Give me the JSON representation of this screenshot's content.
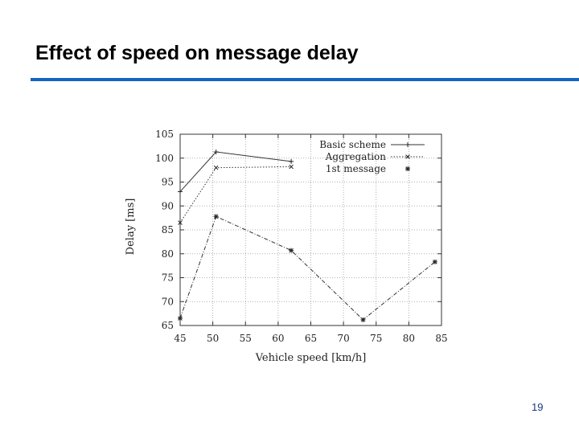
{
  "slide": {
    "title": "Effect of speed on message delay",
    "page_number": "19",
    "accent_color": "#1565c0"
  },
  "chart_data": {
    "type": "line",
    "title": "",
    "xlabel": "Vehicle speed [km/h]",
    "ylabel": "Delay [ms]",
    "xlim": [
      45,
      85
    ],
    "ylim": [
      65,
      105
    ],
    "xticks": [
      45,
      50,
      55,
      60,
      65,
      70,
      75,
      80,
      85
    ],
    "yticks": [
      65,
      70,
      75,
      80,
      85,
      90,
      95,
      100,
      105
    ],
    "grid": true,
    "legend_position": "top-right",
    "series": [
      {
        "name": "Basic scheme",
        "marker": "+",
        "line": "solid",
        "x": [
          45,
          50.5,
          62
        ],
        "y": [
          93,
          101.3,
          99.3
        ]
      },
      {
        "name": "Aggregation",
        "marker": "x",
        "line": "dotted",
        "x": [
          45,
          50.5,
          62
        ],
        "y": [
          86.5,
          98,
          98.2
        ]
      },
      {
        "name": "1st message",
        "marker": "*",
        "line": "dash-dot",
        "x": [
          45,
          50.5,
          62,
          73,
          84
        ],
        "y": [
          66.5,
          87.8,
          80.7,
          66.2,
          78.3
        ]
      }
    ]
  }
}
